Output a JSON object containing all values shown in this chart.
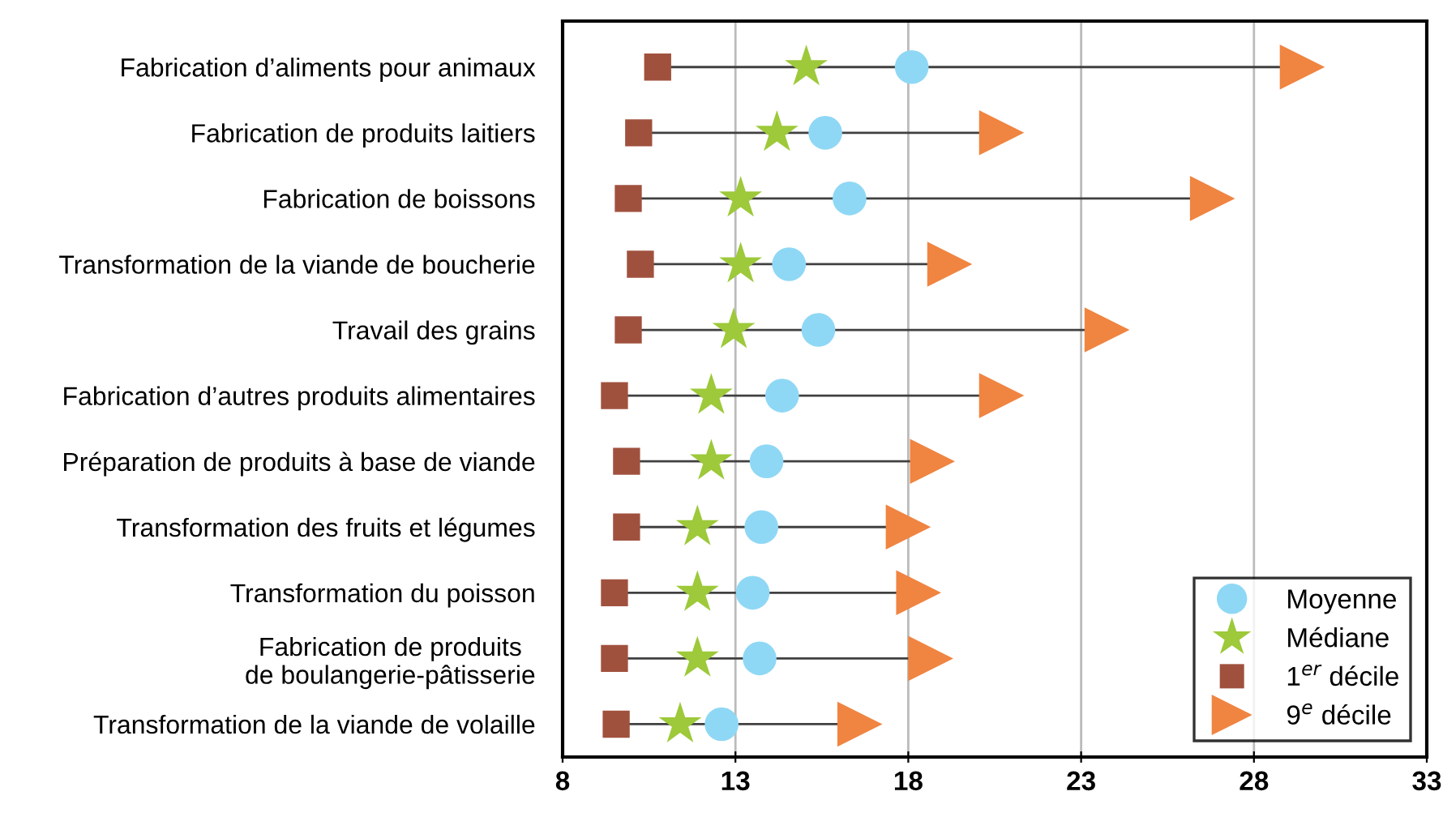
{
  "chart_data": {
    "type": "scatter",
    "orientation": "horizontal",
    "categories": [
      "Fabrication d’aliments pour animaux",
      "Fabrication de produits laitiers",
      "Fabrication de boissons",
      "Transformation de la viande de boucherie",
      "Travail des grains",
      "Fabrication d’autres produits alimentaires",
      "Préparation de produits à base de viande",
      "Transformation des fruits et légumes",
      "Transformation du poisson",
      "Fabrication de produits\nde boulangerie-pâtisserie",
      "Transformation de la viande de volaille"
    ],
    "series": [
      {
        "name": "Moyenne",
        "color": "#8fd8f5",
        "marker": "circle",
        "values": [
          18.1,
          15.6,
          16.3,
          14.55,
          15.4,
          14.35,
          13.9,
          13.75,
          13.5,
          13.7,
          12.6
        ]
      },
      {
        "name": "Médiane",
        "color": "#9dc93a",
        "marker": "star",
        "values": [
          15.05,
          14.2,
          13.15,
          13.15,
          12.95,
          12.3,
          12.3,
          11.9,
          11.9,
          11.9,
          11.4
        ]
      },
      {
        "name": "1$^{er}$ décile",
        "color": "#a0513e",
        "marker": "square",
        "values": [
          10.75,
          10.2,
          9.9,
          10.25,
          9.9,
          9.5,
          9.85,
          9.85,
          9.5,
          9.5,
          9.55
        ]
      },
      {
        "name": "9$^{e}$ décile",
        "color": "#f08441",
        "marker": "triangle",
        "values": [
          29.4,
          20.7,
          26.8,
          19.2,
          23.75,
          20.7,
          18.7,
          18.0,
          18.3,
          18.65,
          16.6
        ]
      }
    ],
    "xlim": [
      8,
      33
    ],
    "xticks": [
      8,
      13,
      18,
      23,
      28,
      33
    ],
    "grid": "x",
    "legend": "bottom right"
  }
}
